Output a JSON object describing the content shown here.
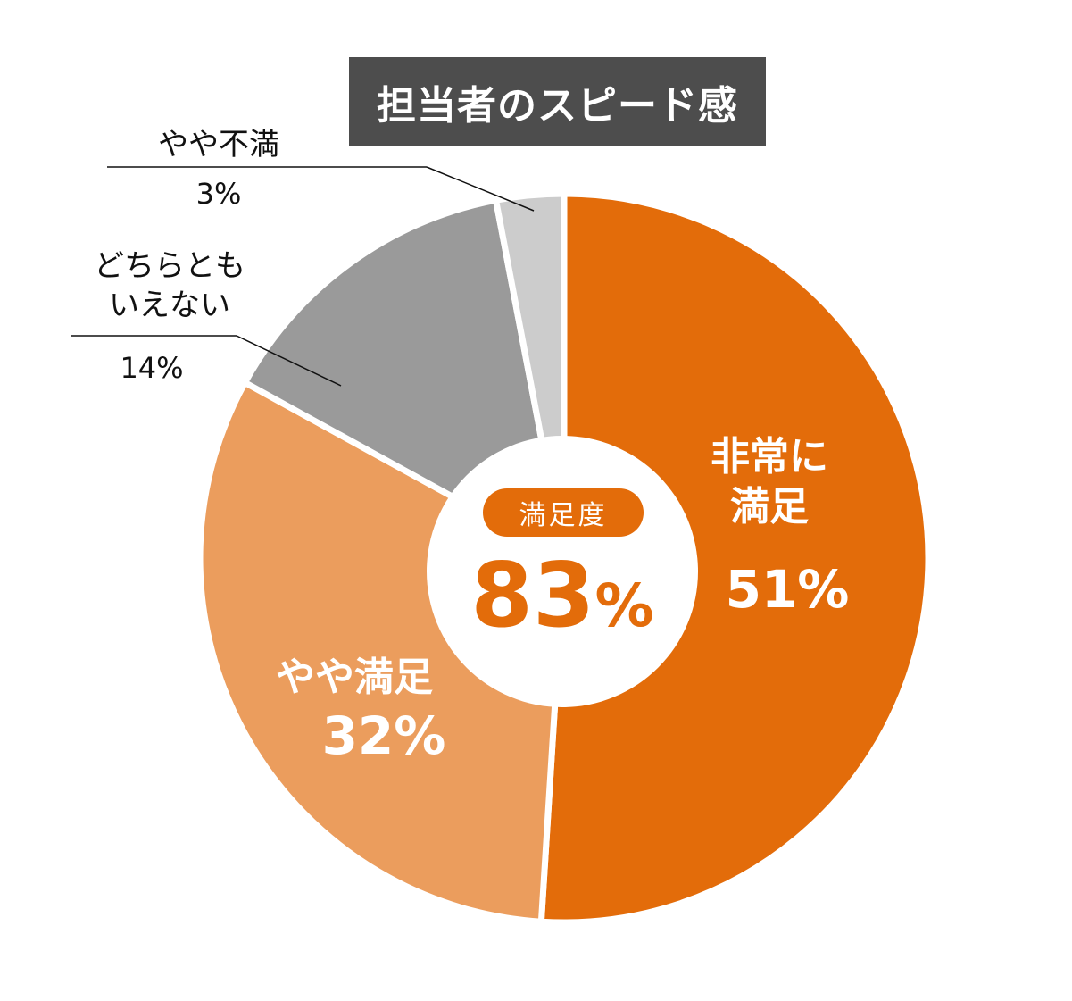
{
  "title": "担当者のスピード感",
  "center": {
    "badge": "満足度",
    "value": "83",
    "unit": "%"
  },
  "chart_data": {
    "type": "pie",
    "donut": true,
    "title": "担当者のスピード感",
    "slices": [
      {
        "label": "非常に満足",
        "value": 51,
        "display": "51%",
        "color": "#e36c0a"
      },
      {
        "label": "やや満足",
        "value": 32,
        "display": "32%",
        "color": "#eb9d5d"
      },
      {
        "label": "どちらともいえない",
        "value": 14,
        "display": "14%",
        "color": "#9a9a9a"
      },
      {
        "label": "やや不満",
        "value": 3,
        "display": "3%",
        "color": "#cccccc"
      }
    ],
    "label_lines": {
      "very_satisfied": [
        "非常に",
        "満足"
      ],
      "neutral": [
        "どちらとも",
        "いえない"
      ]
    }
  }
}
